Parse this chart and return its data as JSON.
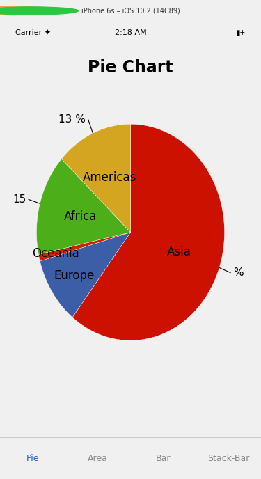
{
  "title": "Pie Chart",
  "title_fontsize": 17,
  "slices": [
    {
      "label": "Asia",
      "value": 60,
      "color": "#CC1100"
    },
    {
      "label": "Europe",
      "value": 10,
      "color": "#3B5EA6"
    },
    {
      "label": "Oceania",
      "value": 1,
      "color": "#CC2200"
    },
    {
      "label": "Africa",
      "value": 15,
      "color": "#4CAF1A"
    },
    {
      "label": "Americas",
      "value": 13,
      "color": "#D4A520"
    }
  ],
  "pct_labels": [
    {
      "text": "%",
      "slice": "Asia"
    },
    {
      "text": "",
      "slice": "Europe"
    },
    {
      "text": "",
      "slice": "Oceania"
    },
    {
      "text": "15",
      "slice": "Africa"
    },
    {
      "text": "13 %",
      "slice": "Americas"
    }
  ],
  "bg_color": "#F0F0F0",
  "chart_bg": "#FFFFFF",
  "label_fontsize": 12,
  "pct_fontsize": 11,
  "status_bar_text": "iPhone 6s – iOS 10.2 (14C89)",
  "carrier_text": "Carrier",
  "time_text": "2:18 AM",
  "tab_labels": [
    "Pie",
    "Area",
    "Bar",
    "Stack-Bar"
  ],
  "tab_active": 0
}
